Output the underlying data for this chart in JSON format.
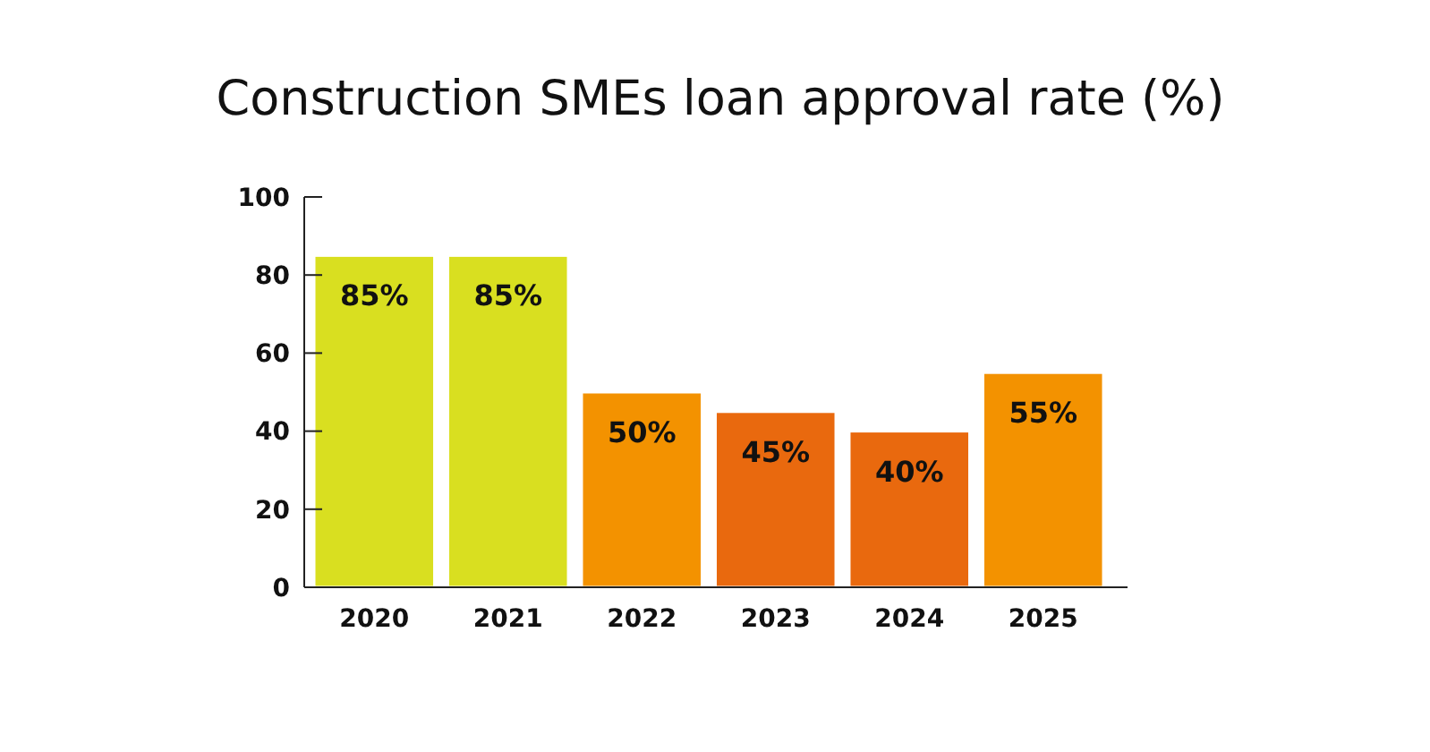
{
  "chart_data": {
    "type": "bar",
    "title": "Construction SMEs loan approval rate (%)",
    "categories": [
      "2020",
      "2021",
      "2022",
      "2023",
      "2024",
      "2025"
    ],
    "values": [
      85,
      85,
      50,
      45,
      40,
      55
    ],
    "colors": [
      "#d9df20",
      "#d9df20",
      "#f39200",
      "#e9690e",
      "#e9690e",
      "#f39200"
    ],
    "value_labels": [
      "85%",
      "85%",
      "50%",
      "45%",
      "40%",
      "55%"
    ],
    "ylim": [
      0,
      100
    ],
    "yticks": [
      0,
      20,
      40,
      60,
      80,
      100
    ],
    "grid": false
  }
}
